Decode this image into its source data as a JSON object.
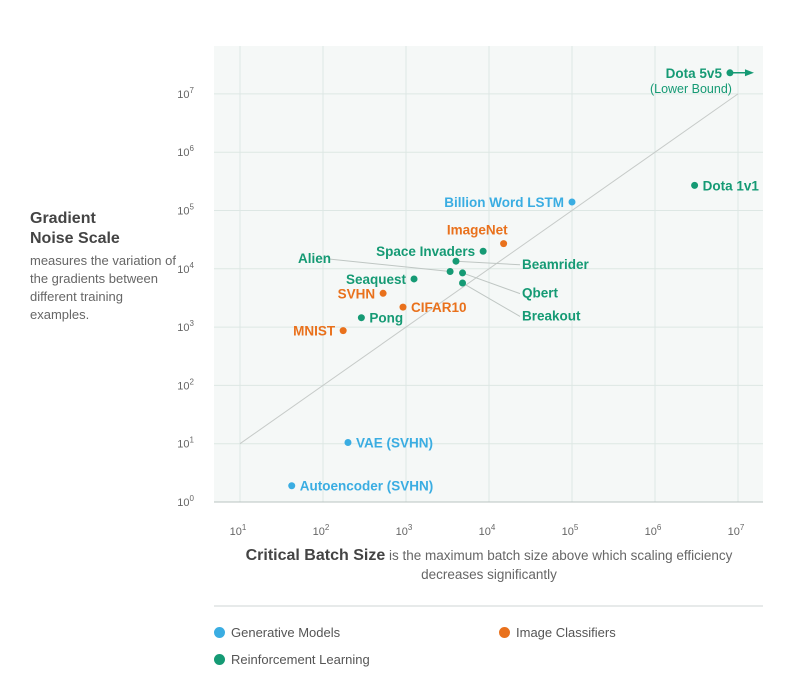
{
  "colors": {
    "generative": "#3aade2",
    "classifier": "#e9711c",
    "rl": "#159a74",
    "plot_bg": "#f5f8f7",
    "grid": "#dde7e4",
    "trend_line": "#c7cbc9"
  },
  "y_axis": {
    "title_line1": "Gradient",
    "title_line2": "Noise Scale",
    "description": "measures the variation of the gradients between different training examples."
  },
  "x_axis": {
    "title_bold": "Critical Batch Size",
    "title_rest": " is the maximum batch size above which scaling efficiency decreases significantly"
  },
  "legend": [
    {
      "label": "Generative Models",
      "color_key": "generative"
    },
    {
      "label": "Image Classifiers",
      "color_key": "classifier"
    },
    {
      "label": "Reinforcement Learning",
      "color_key": "rl"
    }
  ],
  "chart_data": {
    "type": "scatter",
    "x_scale": "log",
    "y_scale": "log",
    "xlim": [
      3,
      16000000.0
    ],
    "ylim": [
      0.75,
      100000000.0
    ],
    "x_ticks": [
      10,
      100,
      1000,
      10000,
      100000,
      1000000,
      10000000
    ],
    "y_ticks": [
      1,
      10,
      100,
      1000,
      10000,
      100000,
      1000000,
      10000000
    ],
    "grid": true,
    "trend_line": [
      [
        10,
        10
      ],
      [
        10000000,
        10000000
      ]
    ],
    "legend_position": "bottom",
    "series": [
      {
        "name": "Generative Models",
        "color_key": "generative",
        "points": [
          {
            "label": "Billion Word LSTM",
            "x": 100000,
            "y": 140000,
            "label_side": "left"
          },
          {
            "label": "VAE (SVHN)",
            "x": 200,
            "y": 10.5,
            "label_side": "right"
          },
          {
            "label": "Autoencoder (SVHN)",
            "x": 42,
            "y": 1.9,
            "label_side": "right"
          }
        ]
      },
      {
        "name": "Image Classifiers",
        "color_key": "classifier",
        "points": [
          {
            "label": "ImageNet",
            "x": 15000,
            "y": 27000,
            "label_side": "above-left"
          },
          {
            "label": "SVHN",
            "x": 530,
            "y": 3800,
            "label_side": "left"
          },
          {
            "label": "CIFAR10",
            "x": 920,
            "y": 2200,
            "label_side": "right"
          },
          {
            "label": "MNIST",
            "x": 175,
            "y": 870,
            "label_side": "left"
          }
        ]
      },
      {
        "name": "Reinforcement Learning",
        "color_key": "rl",
        "points": [
          {
            "label": "Dota 5v5",
            "sublabel": "(Lower Bound)",
            "x": 8000000,
            "y": 23000000,
            "label_side": "left",
            "arrow": true
          },
          {
            "label": "Dota 1v1",
            "x": 3000000,
            "y": 270000,
            "label_side": "right"
          },
          {
            "label": "Space Invaders",
            "x": 8500,
            "y": 20000,
            "label_side": "left"
          },
          {
            "label": "Alien",
            "x": 3400,
            "y": 9000,
            "label_side": "leader",
            "label_x": 50,
            "label_y": 12500
          },
          {
            "label": "Beamrider",
            "x": 4000,
            "y": 13500,
            "label_side": "leader",
            "label_x": 25000,
            "label_y": 10000
          },
          {
            "label": "Qbert",
            "x": 4800,
            "y": 8500,
            "label_side": "leader",
            "label_x": 25000,
            "label_y": 3200
          },
          {
            "label": "Breakout",
            "x": 4800,
            "y": 5700,
            "label_side": "leader",
            "label_x": 25000,
            "label_y": 1300
          },
          {
            "label": "Seaquest",
            "x": 1250,
            "y": 6700,
            "label_side": "left"
          },
          {
            "label": "Pong",
            "x": 290,
            "y": 1450,
            "label_side": "right"
          }
        ]
      }
    ]
  }
}
